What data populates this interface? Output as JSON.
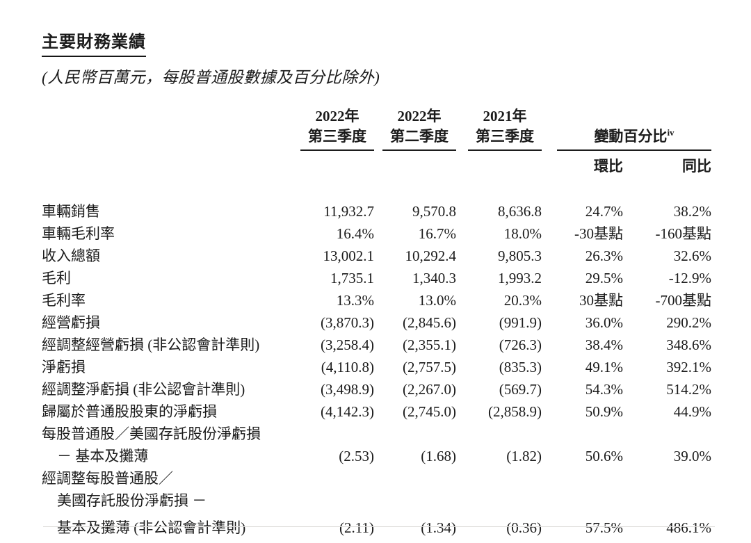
{
  "document": {
    "title": "主要財務業績",
    "subtitle": "(人民幣百萬元，每股普通股數據及百分比除外)"
  },
  "table": {
    "period_headers": [
      {
        "line1": "2022年",
        "line2": "第三季度"
      },
      {
        "line1": "2022年",
        "line2": "第二季度"
      },
      {
        "line1": "2021年",
        "line2": "第三季度"
      }
    ],
    "change_header": {
      "label": "變動百分比",
      "footnote_marker": "iv",
      "qoq": "環比",
      "yoy": "同比"
    },
    "rows": [
      {
        "label_lines": [
          {
            "text": "車輛銷售",
            "indent": false
          }
        ],
        "values": [
          "11,932.7",
          "9,570.8",
          "8,636.8",
          "24.7%",
          "38.2%"
        ]
      },
      {
        "label_lines": [
          {
            "text": "車輛毛利率",
            "indent": false
          }
        ],
        "values": [
          "16.4%",
          "16.7%",
          "18.0%",
          "-30基點",
          "-160基點"
        ]
      },
      {
        "label_lines": [
          {
            "text": "收入總額",
            "indent": false
          }
        ],
        "values": [
          "13,002.1",
          "10,292.4",
          "9,805.3",
          "26.3%",
          "32.6%"
        ]
      },
      {
        "label_lines": [
          {
            "text": "毛利",
            "indent": false
          }
        ],
        "values": [
          "1,735.1",
          "1,340.3",
          "1,993.2",
          "29.5%",
          "-12.9%"
        ]
      },
      {
        "label_lines": [
          {
            "text": "毛利率",
            "indent": false
          }
        ],
        "values": [
          "13.3%",
          "13.0%",
          "20.3%",
          "30基點",
          "-700基點"
        ]
      },
      {
        "label_lines": [
          {
            "text": "經營虧損",
            "indent": false
          }
        ],
        "values": [
          "(3,870.3)",
          "(2,845.6)",
          "(991.9)",
          "36.0%",
          "290.2%"
        ]
      },
      {
        "label_lines": [
          {
            "text": "經調整經營虧損 (非公認會計準則)",
            "indent": false
          }
        ],
        "values": [
          "(3,258.4)",
          "(2,355.1)",
          "(726.3)",
          "38.4%",
          "348.6%"
        ]
      },
      {
        "label_lines": [
          {
            "text": "淨虧損",
            "indent": false
          }
        ],
        "values": [
          "(4,110.8)",
          "(2,757.5)",
          "(835.3)",
          "49.1%",
          "392.1%"
        ]
      },
      {
        "label_lines": [
          {
            "text": "經調整淨虧損 (非公認會計準則)",
            "indent": false
          }
        ],
        "values": [
          "(3,498.9)",
          "(2,267.0)",
          "(569.7)",
          "54.3%",
          "514.2%"
        ]
      },
      {
        "label_lines": [
          {
            "text": "歸屬於普通股股東的淨虧損",
            "indent": false
          }
        ],
        "values": [
          "(4,142.3)",
          "(2,745.0)",
          "(2,858.9)",
          "50.9%",
          "44.9%"
        ]
      },
      {
        "label_lines": [
          {
            "text": "每股普通股／美國存託股份淨虧損",
            "indent": false
          },
          {
            "text": "－ 基本及攤薄",
            "indent": true
          }
        ],
        "values": [
          "(2.53)",
          "(1.68)",
          "(1.82)",
          "50.6%",
          "39.0%"
        ]
      },
      {
        "label_lines": [
          {
            "text": "經調整每股普通股／",
            "indent": false
          },
          {
            "text": "美國存託股份淨虧損 －",
            "indent": true
          },
          {
            "text": "基本及攤薄 (非公認會計準則)",
            "indent": true
          }
        ],
        "values": [
          "(2.11)",
          "(1.34)",
          "(0.36)",
          "57.5%",
          "486.1%"
        ]
      }
    ]
  }
}
